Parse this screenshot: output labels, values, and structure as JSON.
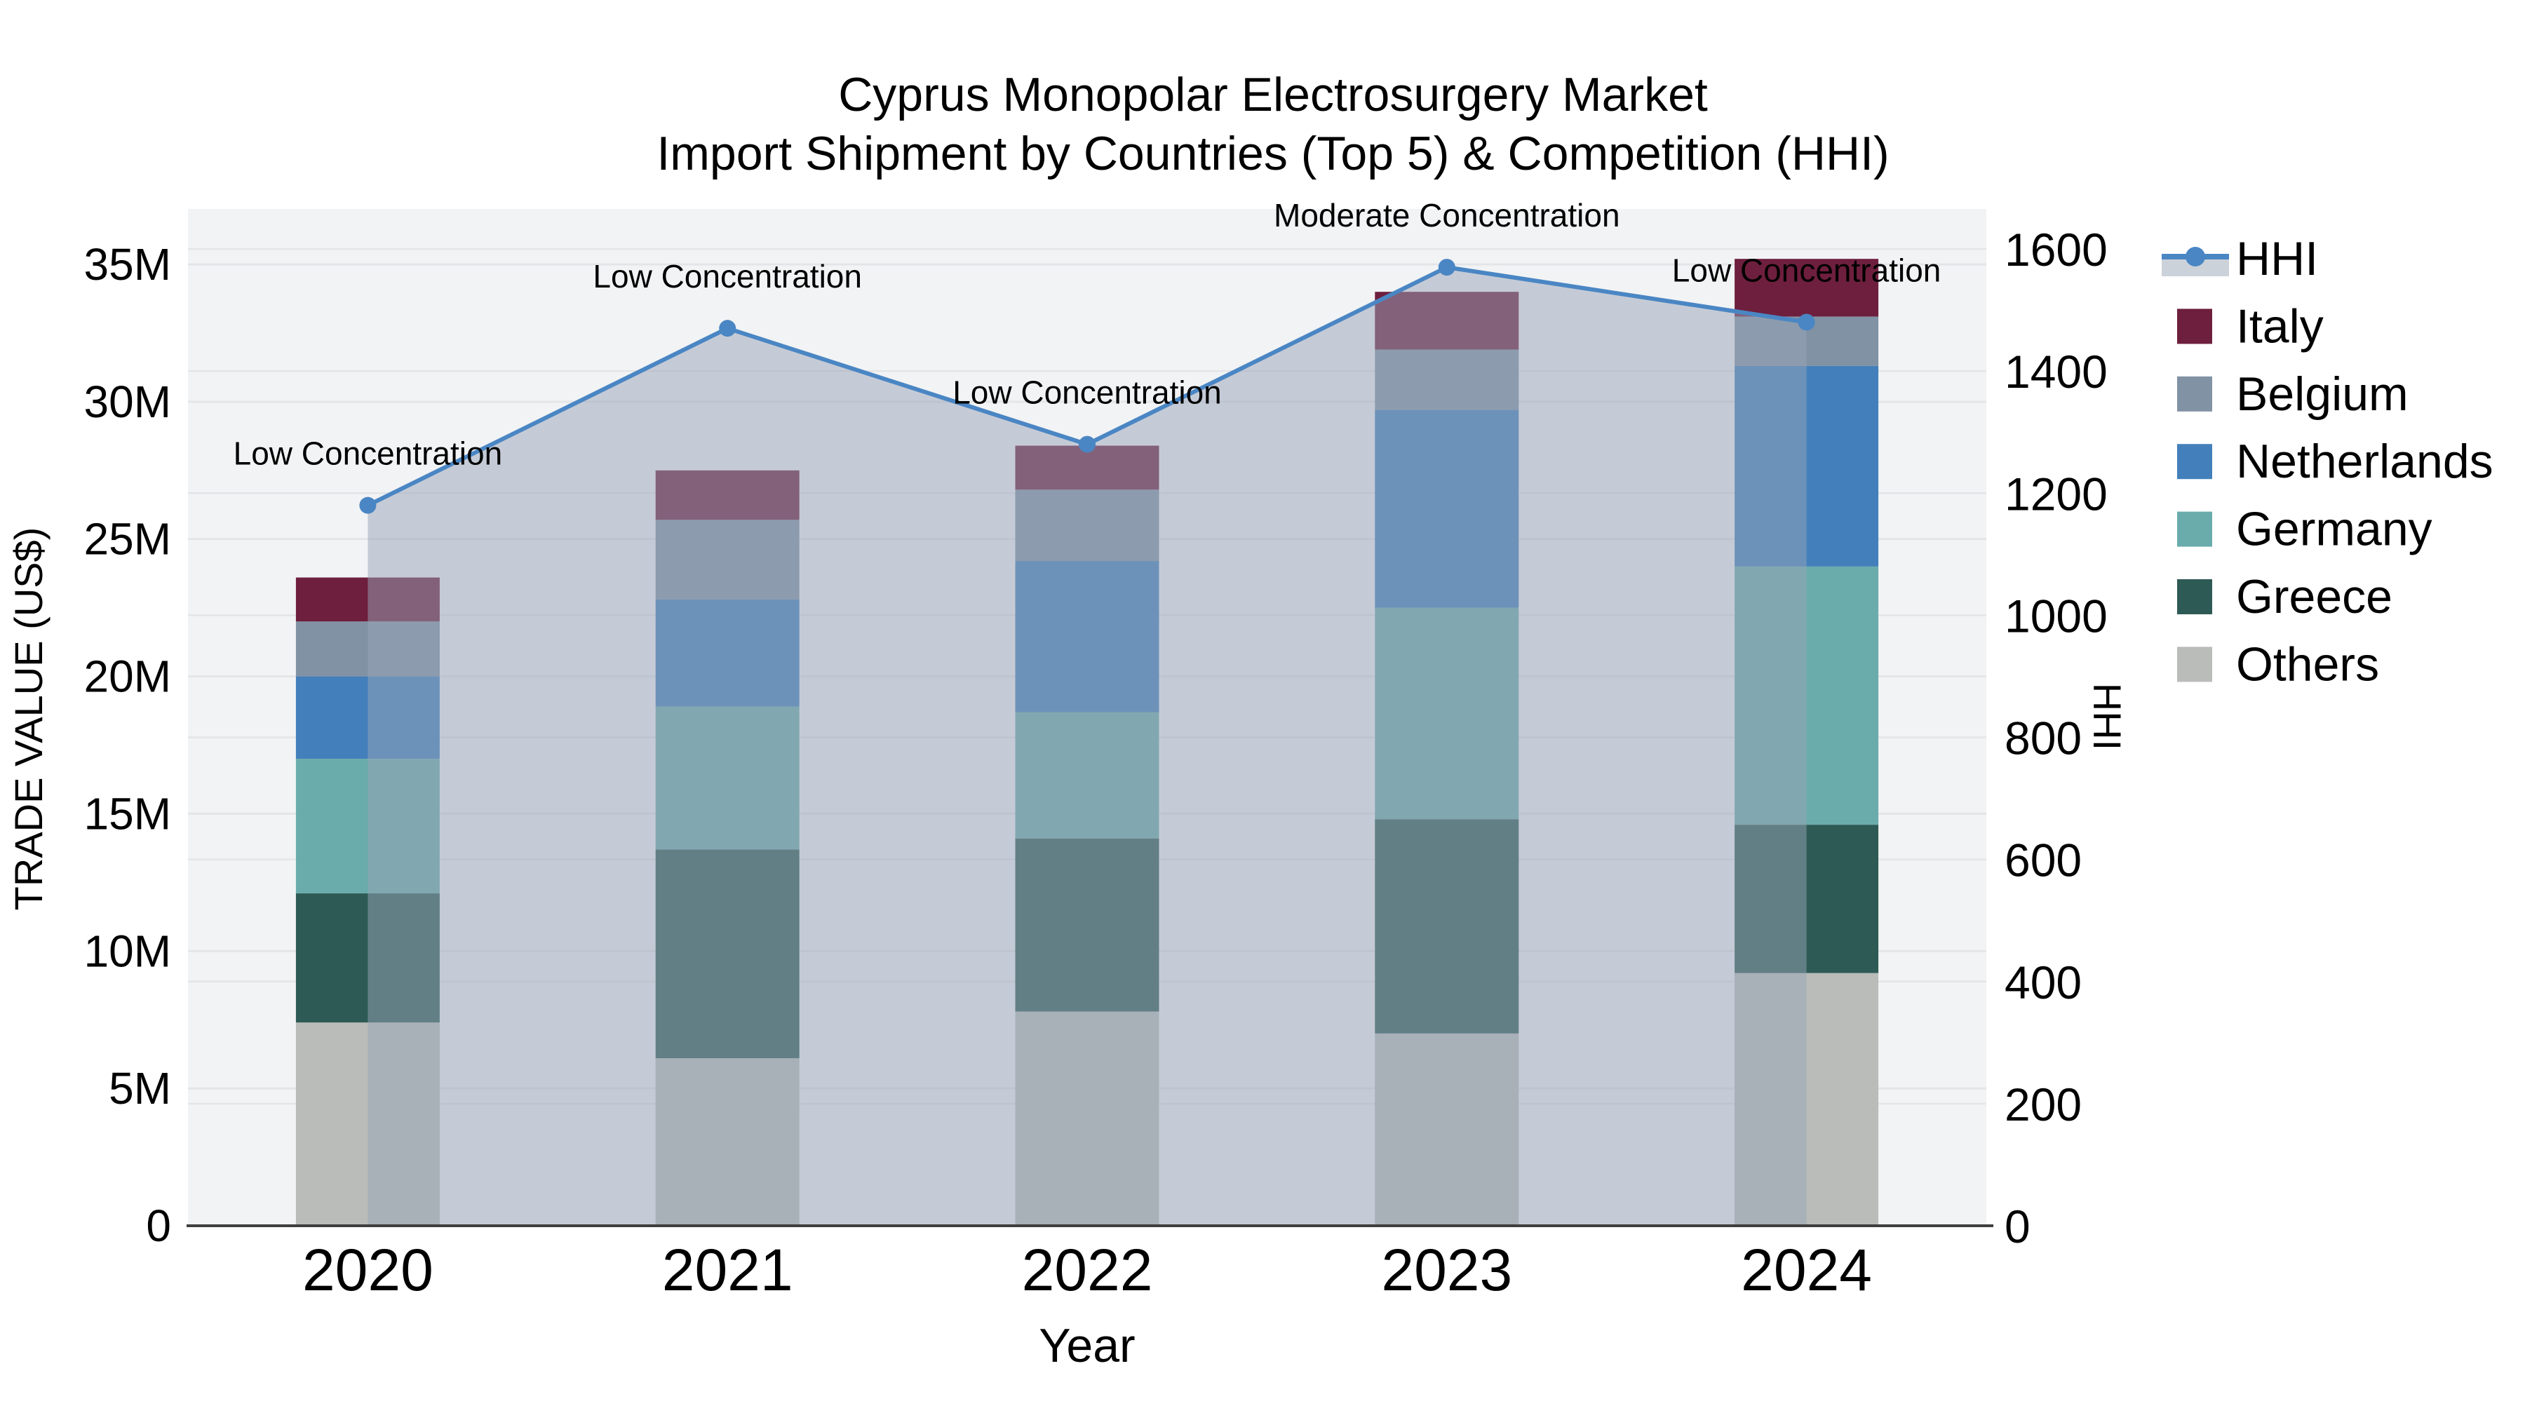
{
  "chart_data": {
    "type": "combo-stacked-bar-line",
    "title_line1": "Cyprus Monopolar Electrosurgery Market",
    "title_line2": "Import Shipment by Countries (Top 5) & Competition (HHI)",
    "xlabel": "Year",
    "ylabel_left": "TRADE VALUE (US$)",
    "ylabel_right": "HHI",
    "categories": [
      "2020",
      "2021",
      "2022",
      "2023",
      "2024"
    ],
    "y_left": {
      "unit": "millions US$",
      "tick_labels": [
        "0",
        "5M",
        "10M",
        "15M",
        "20M",
        "25M",
        "30M",
        "35M"
      ],
      "tick_values": [
        0,
        5,
        10,
        15,
        20,
        25,
        30,
        35
      ],
      "max": 35
    },
    "y_right": {
      "unit": "HHI index",
      "tick_labels": [
        "0",
        "200",
        "400",
        "600",
        "800",
        "1000",
        "1200",
        "1400",
        "1600"
      ],
      "tick_values": [
        0,
        200,
        400,
        600,
        800,
        1000,
        1200,
        1400,
        1600
      ],
      "max": 1600
    },
    "series": [
      {
        "name": "Others",
        "color": "#b9bcb9",
        "values_musd": [
          7.4,
          6.1,
          7.8,
          7.0,
          9.2
        ]
      },
      {
        "name": "Greece",
        "color": "#2e5a55",
        "values_musd": [
          4.7,
          7.6,
          6.3,
          7.8,
          5.4
        ]
      },
      {
        "name": "Germany",
        "color": "#6aacab",
        "values_musd": [
          4.9,
          5.2,
          4.6,
          7.7,
          9.4
        ]
      },
      {
        "name": "Netherlands",
        "color": "#4380bb",
        "values_musd": [
          3.0,
          3.9,
          5.5,
          7.2,
          7.3
        ]
      },
      {
        "name": "Belgium",
        "color": "#8092a4",
        "values_musd": [
          2.0,
          2.9,
          2.6,
          2.2,
          1.8
        ]
      },
      {
        "name": "Italy",
        "color": "#6e1f3d",
        "values_musd": [
          1.6,
          1.8,
          1.6,
          2.1,
          2.1
        ]
      }
    ],
    "line_series": {
      "name": "HHI",
      "color": "#4a86c4",
      "area_color": "rgba(152,164,184,0.5)",
      "legend_band_color": "#ccd2d9",
      "values": [
        1180,
        1470,
        1280,
        1570,
        1480
      ]
    },
    "annotations": [
      {
        "year": "2020",
        "text": "Low Concentration"
      },
      {
        "year": "2021",
        "text": "Low Concentration"
      },
      {
        "year": "2022",
        "text": "Low Concentration"
      },
      {
        "year": "2023",
        "text": "Moderate Concentration"
      },
      {
        "year": "2024",
        "text": "Low Concentration"
      }
    ],
    "legend": {
      "items": [
        "HHI",
        "Italy",
        "Belgium",
        "Netherlands",
        "Germany",
        "Greece",
        "Others"
      ]
    },
    "colors": {
      "page_bg": "#ffffff",
      "plot_bg": "#f2f3f4",
      "gridline": "#e3e5e7",
      "axis_line": "#3f3f3f",
      "text": "#000000"
    }
  }
}
